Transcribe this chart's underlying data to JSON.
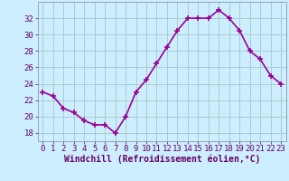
{
  "x": [
    0,
    1,
    2,
    3,
    4,
    5,
    6,
    7,
    8,
    9,
    10,
    11,
    12,
    13,
    14,
    15,
    16,
    17,
    18,
    19,
    20,
    21,
    22,
    23
  ],
  "y": [
    23.0,
    22.5,
    21.0,
    20.5,
    19.5,
    19.0,
    19.0,
    18.0,
    20.0,
    23.0,
    24.5,
    26.5,
    28.5,
    30.5,
    32.0,
    32.0,
    32.0,
    33.0,
    32.0,
    30.5,
    28.0,
    27.0,
    25.0,
    24.0
  ],
  "line_color": "#990099",
  "marker": "+",
  "markersize": 4,
  "markeredgewidth": 1.2,
  "bg_color": "#cceeff",
  "grid_color": "#aacccc",
  "xlabel": "Windchill (Refroidissement éolien,°C)",
  "xlabel_color": "#660066",
  "tick_color": "#660066",
  "ylim": [
    17,
    34
  ],
  "yticks": [
    18,
    20,
    22,
    24,
    26,
    28,
    30,
    32
  ],
  "xlim": [
    -0.5,
    23.5
  ],
  "xticks": [
    0,
    1,
    2,
    3,
    4,
    5,
    6,
    7,
    8,
    9,
    10,
    11,
    12,
    13,
    14,
    15,
    16,
    17,
    18,
    19,
    20,
    21,
    22,
    23
  ],
  "linewidth": 1.2,
  "tick_fontsize": 6.5,
  "xlabel_fontsize": 7.0
}
